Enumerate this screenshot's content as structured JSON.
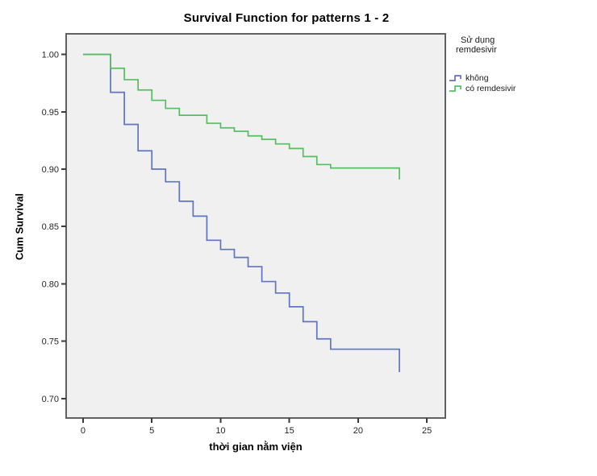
{
  "title": "Survival Function for patterns 1 - 2",
  "axes": {
    "x_title": "thời gian nằm viện",
    "y_title": "Cum Survival"
  },
  "legend": {
    "title_lines": [
      "Sử dụng",
      "remdesivir"
    ],
    "items": [
      {
        "label": "không",
        "color": "#5F74C2"
      },
      {
        "label": "có remdesivir",
        "color": "#55BE61"
      }
    ]
  },
  "colors": {
    "series_blue": "#5F74C2",
    "series_green": "#55BE61",
    "plot_background": "#F0F0F0",
    "frame_border": "#616161",
    "tick_mark": "#3a3a3a",
    "tick_label": "#262626",
    "figure_background": "#FFFFFF"
  },
  "chart_data": {
    "type": "line",
    "subtype": "kaplan-meier-step",
    "title": "Survival Function for patterns 1 - 2",
    "xlabel": "thời gian nằm viện",
    "ylabel": "Cum Survival",
    "xlim": [
      -1.23,
      26.34
    ],
    "ylim": [
      0.683,
      1.018
    ],
    "grid": false,
    "legend_position": "top-right-outside",
    "xticks": [
      0,
      5,
      10,
      15,
      20,
      25
    ],
    "xtick_labels": [
      "0",
      "5",
      "10",
      "15",
      "20",
      "25"
    ],
    "yticks": [
      0.7,
      0.75,
      0.8,
      0.85,
      0.9,
      0.95,
      1.0
    ],
    "ytick_labels": [
      "0.70",
      "0.75",
      "0.80",
      "0.85",
      "0.90",
      "0.95",
      "1.00"
    ],
    "series": [
      {
        "name": "không",
        "color": "#5F74C2",
        "steps": [
          [
            0,
            1.0
          ],
          [
            2,
            0.967
          ],
          [
            3,
            0.939
          ],
          [
            4,
            0.916
          ],
          [
            5,
            0.9
          ],
          [
            6,
            0.889
          ],
          [
            7,
            0.872
          ],
          [
            8,
            0.859
          ],
          [
            9,
            0.838
          ],
          [
            10,
            0.83
          ],
          [
            11,
            0.823
          ],
          [
            12,
            0.815
          ],
          [
            13,
            0.802
          ],
          [
            14,
            0.792
          ],
          [
            15,
            0.78
          ],
          [
            16,
            0.767
          ],
          [
            17,
            0.752
          ],
          [
            18,
            0.743
          ],
          [
            23,
            0.723
          ]
        ]
      },
      {
        "name": "có remdesivir",
        "color": "#55BE61",
        "steps": [
          [
            0,
            1.0
          ],
          [
            2,
            0.988
          ],
          [
            3,
            0.978
          ],
          [
            4,
            0.969
          ],
          [
            5,
            0.96
          ],
          [
            6,
            0.953
          ],
          [
            7,
            0.947
          ],
          [
            9,
            0.94
          ],
          [
            10,
            0.936
          ],
          [
            11,
            0.933
          ],
          [
            12,
            0.929
          ],
          [
            13,
            0.926
          ],
          [
            14,
            0.922
          ],
          [
            15,
            0.918
          ],
          [
            16,
            0.911
          ],
          [
            17,
            0.904
          ],
          [
            18,
            0.901
          ],
          [
            23,
            0.891
          ]
        ]
      }
    ]
  }
}
